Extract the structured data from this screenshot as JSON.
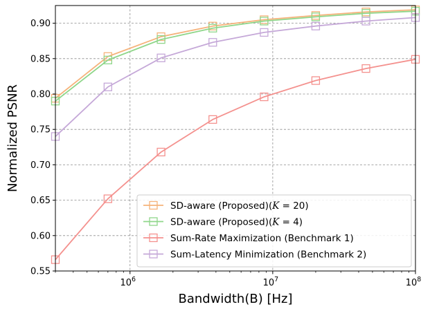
{
  "chart_data": {
    "type": "line",
    "xlabel": "Bandwidth(B) [Hz]",
    "ylabel": "Normalized PSNR",
    "xscale": "log",
    "xlim": [
      300000,
      100000000
    ],
    "ylim": [
      0.55,
      0.925
    ],
    "grid": true,
    "legend_position": "bottom-right",
    "x_ticks": [
      {
        "value": 1000000,
        "base": "10",
        "exp": "6"
      },
      {
        "value": 10000000,
        "base": "10",
        "exp": "7"
      },
      {
        "value": 100000000,
        "base": "10",
        "exp": "8"
      }
    ],
    "y_ticks": [
      {
        "value": 0.55,
        "label": "0.55"
      },
      {
        "value": 0.6,
        "label": "0.60"
      },
      {
        "value": 0.65,
        "label": "0.65"
      },
      {
        "value": 0.7,
        "label": "0.70"
      },
      {
        "value": 0.75,
        "label": "0.75"
      },
      {
        "value": 0.8,
        "label": "0.80"
      },
      {
        "value": 0.85,
        "label": "0.85"
      },
      {
        "value": 0.9,
        "label": "0.90"
      }
    ],
    "x": [
      300000,
      700000,
      1650000,
      3800000,
      8700000,
      20000000,
      45000000,
      100000000
    ],
    "series": [
      {
        "name": "SD-aware (Proposed)(K = 20)",
        "color": "#f5b27a",
        "values": [
          0.794,
          0.853,
          0.881,
          0.896,
          0.905,
          0.911,
          0.916,
          0.919
        ]
      },
      {
        "name": "SD-aware (Proposed)(K = 4)",
        "color": "#8fd68a",
        "values": [
          0.79,
          0.848,
          0.877,
          0.893,
          0.903,
          0.909,
          0.914,
          0.917
        ]
      },
      {
        "name": "Sum-Rate Maximization (Benchmark 1)",
        "color": "#f4918e",
        "values": [
          0.566,
          0.652,
          0.718,
          0.764,
          0.796,
          0.819,
          0.836,
          0.849
        ]
      },
      {
        "name": "Sum-Latency Minimization (Benchmark 2)",
        "color": "#c5a8d8",
        "values": [
          0.74,
          0.81,
          0.851,
          0.873,
          0.887,
          0.896,
          0.903,
          0.908
        ]
      }
    ],
    "legend": [
      {
        "prefix": "SD-aware (Proposed)(",
        "var": "K",
        "suffix": " = 20)"
      },
      {
        "prefix": "SD-aware (Proposed)(",
        "var": "K",
        "suffix": " = 4)"
      },
      {
        "prefix": "Sum-Rate Maximization (Benchmark 1)",
        "var": "",
        "suffix": ""
      },
      {
        "prefix": "Sum-Latency Minimization (Benchmark 2)",
        "var": "",
        "suffix": ""
      }
    ]
  }
}
